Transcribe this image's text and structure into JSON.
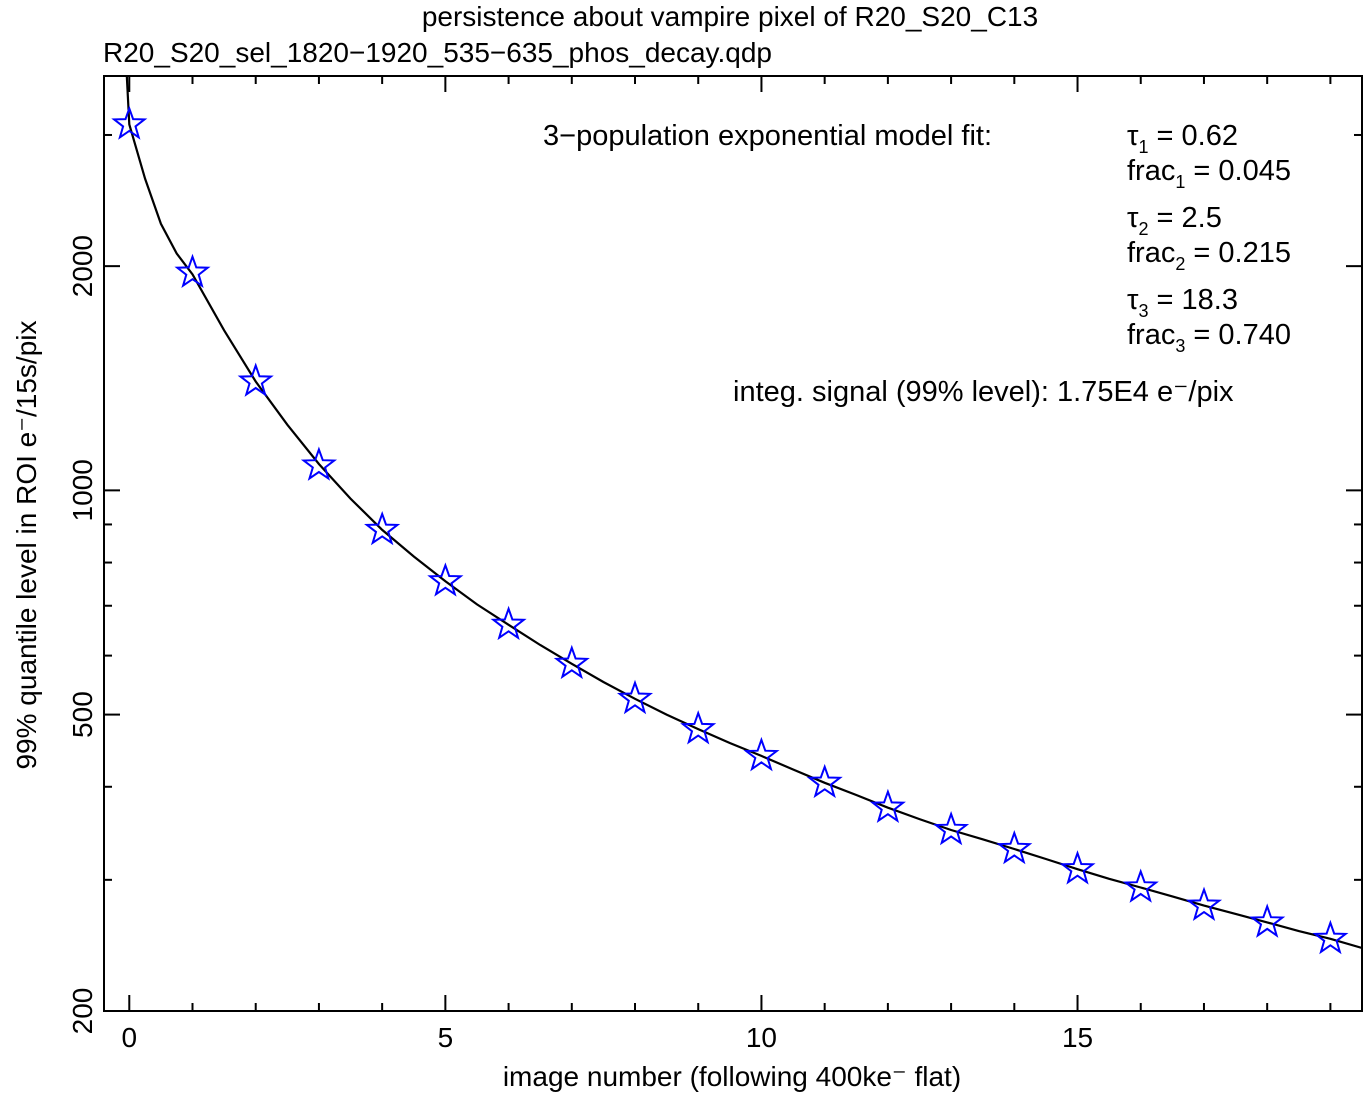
{
  "chart_data": {
    "type": "scatter",
    "title": "persistence about vampire pixel of R20_S20_C13",
    "subtitle": "R20_S20_sel_1820−1920_535−635_phos_decay.qdp",
    "xlabel": "image number (following 400ke⁻ flat)",
    "ylabel": "99% quantile level in ROI e⁻/15s/pix",
    "xlim": [
      -0.4,
      19.5
    ],
    "ylim": [
      200,
      3600
    ],
    "yscale": "log",
    "x_ticks": [
      0,
      5,
      10,
      15
    ],
    "x_tick_labels": [
      "0",
      "5",
      "10",
      "15"
    ],
    "y_ticks": [
      200,
      500,
      1000,
      2000
    ],
    "y_tick_labels": [
      "200",
      "500",
      "1000",
      "2000"
    ],
    "grid": false,
    "series": [
      {
        "marker": "star",
        "color": "#0000ff",
        "x": [
          0,
          1,
          2,
          3,
          4,
          5,
          6,
          7,
          8,
          9,
          10,
          11,
          12,
          13,
          14,
          15,
          16,
          17,
          18,
          19
        ],
        "y": [
          3100,
          1960,
          1400,
          1080,
          885,
          755,
          660,
          585,
          525,
          478,
          440,
          405,
          375,
          350,
          330,
          310,
          293,
          277,
          263,
          250
        ]
      },
      {
        "marker": "line",
        "color": "#000000",
        "x": [
          -0.04,
          0,
          0.25,
          0.5,
          0.75,
          1,
          1.5,
          2,
          2.5,
          3,
          3.5,
          4,
          4.5,
          5,
          5.5,
          6,
          6.5,
          7,
          7.5,
          8,
          8.5,
          9,
          9.5,
          10,
          10.5,
          11,
          11.5,
          12,
          12.5,
          13,
          13.5,
          14,
          14.5,
          15,
          15.5,
          16,
          16.5,
          17,
          17.5,
          18,
          18.5,
          19,
          19.5
        ],
        "y": [
          3600,
          3100,
          2620,
          2280,
          2080,
          1950,
          1640,
          1400,
          1225,
          1085,
          975,
          885,
          815,
          755,
          703,
          660,
          620,
          585,
          553,
          525,
          500,
          478,
          458,
          440,
          422,
          405,
          390,
          375,
          362,
          350,
          340,
          330,
          320,
          310,
          301,
          293,
          285,
          277,
          270,
          263,
          256,
          250,
          243
        ]
      }
    ],
    "annotations": {
      "model_label": "3−population exponential model fit:",
      "params": [
        {
          "sym": "τ",
          "sub": "1",
          "val": " = 0.62"
        },
        {
          "sym": "frac",
          "sub": "1",
          "val": " = 0.045"
        },
        {
          "sym": "τ",
          "sub": "2",
          "val": " = 2.5"
        },
        {
          "sym": "frac",
          "sub": "2",
          "val": " = 0.215"
        },
        {
          "sym": "τ",
          "sub": "3",
          "val": " = 18.3"
        },
        {
          "sym": "frac",
          "sub": "3",
          "val": " = 0.740"
        }
      ],
      "integ": "integ. signal (99% level): 1.75E4 e⁻/pix"
    }
  }
}
